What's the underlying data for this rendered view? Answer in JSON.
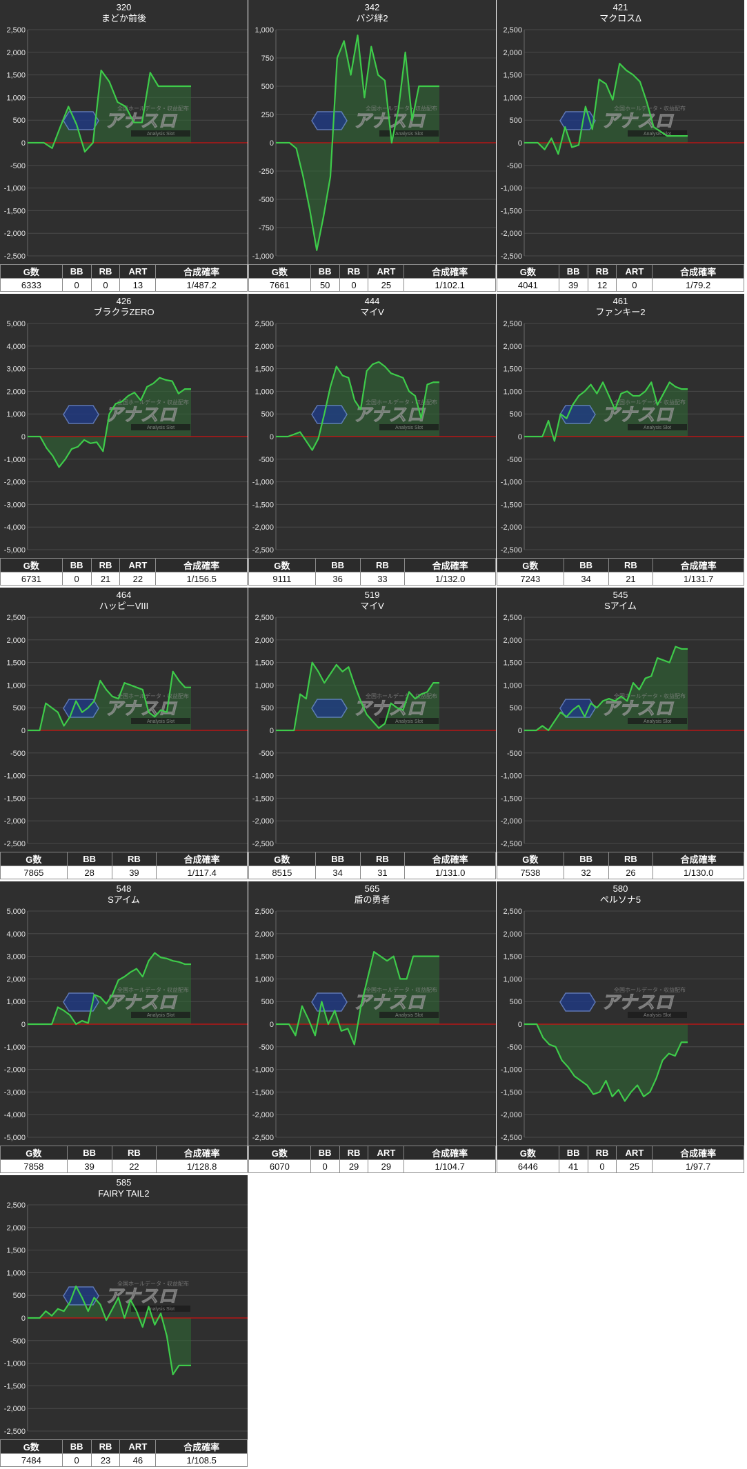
{
  "stats_labels": {
    "g": "G数",
    "bb": "BB",
    "rb": "RB",
    "art": "ART",
    "prob": "合成確率"
  },
  "watermark": {
    "text": "アナスロ",
    "sub": "Analysis Slot",
    "top": "全国ホールデータ・収益配布"
  },
  "colors": {
    "background": "#2f2f2f",
    "line": "#3ecb4a",
    "fill": "#2f6b34",
    "zero_line": "#d01010",
    "grid": "#4a4a4a"
  },
  "chart_data": [
    {
      "type": "area",
      "number": "320",
      "title": "まどか前後",
      "ylim": [
        -2500,
        2500
      ],
      "yticks": [
        2500,
        2000,
        1500,
        1000,
        500,
        0,
        -500,
        -1000,
        -1500,
        -2000,
        -2500
      ],
      "values": [
        0,
        0,
        0,
        -120,
        350,
        800,
        400,
        -200,
        0,
        1600,
        1350,
        900,
        800,
        450,
        450,
        1550,
        1250,
        1250,
        1250,
        1250,
        1250
      ],
      "stats": {
        "g": "6333",
        "bb": "0",
        "rb": "0",
        "art": "13",
        "prob": "1/487.2"
      }
    },
    {
      "type": "area",
      "number": "342",
      "title": "バジ絆2",
      "ylim": [
        -1000,
        1000
      ],
      "yticks": [
        1000,
        750,
        500,
        250,
        0,
        -250,
        -500,
        -750,
        -1000
      ],
      "values": [
        0,
        0,
        0,
        -50,
        -300,
        -600,
        -950,
        -650,
        -300,
        750,
        900,
        600,
        950,
        400,
        850,
        600,
        550,
        0,
        300,
        800,
        200,
        500,
        500,
        500,
        500
      ],
      "stats": {
        "g": "7661",
        "bb": "50",
        "rb": "0",
        "art": "25",
        "prob": "1/102.1"
      }
    },
    {
      "type": "area",
      "number": "421",
      "title": "マクロスΔ",
      "ylim": [
        -2500,
        2500
      ],
      "yticks": [
        2500,
        2000,
        1500,
        1000,
        500,
        0,
        -500,
        -1000,
        -1500,
        -2000,
        -2500
      ],
      "values": [
        0,
        0,
        0,
        -150,
        100,
        -250,
        350,
        -100,
        -50,
        800,
        300,
        1400,
        1300,
        950,
        1750,
        1600,
        1500,
        1350,
        900,
        350,
        250,
        150,
        150,
        150,
        150
      ],
      "stats": {
        "g": "4041",
        "bb": "39",
        "rb": "12",
        "art": "0",
        "prob": "1/79.2"
      }
    },
    {
      "type": "area",
      "number": "426",
      "title": "ブラクラZERO",
      "ylim": [
        -5000,
        5000
      ],
      "yticks": [
        5000,
        4000,
        3000,
        2000,
        1000,
        0,
        -1000,
        -2000,
        -3000,
        -4000,
        -5000
      ],
      "values": [
        0,
        0,
        0,
        -500,
        -850,
        -1350,
        -1000,
        -550,
        -450,
        -150,
        -300,
        -250,
        -650,
        1000,
        1450,
        1550,
        1800,
        1950,
        1600,
        2200,
        2350,
        2600,
        2500,
        2450,
        1900,
        2100,
        2100
      ],
      "stats": {
        "g": "6731",
        "bb": "0",
        "rb": "21",
        "art": "22",
        "prob": "1/156.5"
      }
    },
    {
      "type": "area",
      "number": "444",
      "title": "マイV",
      "ylim": [
        -2500,
        2500
      ],
      "yticks": [
        2500,
        2000,
        1500,
        1000,
        500,
        0,
        -500,
        -1000,
        -1500,
        -2000,
        -2500
      ],
      "values": [
        0,
        0,
        0,
        50,
        100,
        -100,
        -300,
        -50,
        500,
        1100,
        1550,
        1350,
        1300,
        800,
        600,
        1450,
        1600,
        1650,
        1550,
        1400,
        1350,
        1300,
        1000,
        900,
        400,
        1150,
        1200,
        1200
      ],
      "stats": {
        "g": "9111",
        "bb": "36",
        "rb": "33",
        "prob": "1/132.0"
      }
    },
    {
      "type": "area",
      "number": "461",
      "title": "ファンキー2",
      "ylim": [
        -2500,
        2500
      ],
      "yticks": [
        2500,
        2000,
        1500,
        1000,
        500,
        0,
        -500,
        -1000,
        -1500,
        -2000,
        -2500
      ],
      "values": [
        0,
        0,
        0,
        0,
        350,
        -100,
        500,
        400,
        700,
        900,
        1000,
        1150,
        950,
        1200,
        900,
        600,
        950,
        1000,
        900,
        900,
        1000,
        1200,
        700,
        950,
        1200,
        1100,
        1050,
        1050
      ],
      "stats": {
        "g": "7243",
        "bb": "34",
        "rb": "21",
        "prob": "1/131.7"
      }
    },
    {
      "type": "area",
      "number": "464",
      "title": "ハッピーVIII",
      "ylim": [
        -2500,
        2500
      ],
      "yticks": [
        2500,
        2000,
        1500,
        1000,
        500,
        0,
        -500,
        -1000,
        -1500,
        -2000,
        -2500
      ],
      "values": [
        0,
        0,
        0,
        600,
        500,
        400,
        100,
        300,
        650,
        400,
        500,
        650,
        1100,
        900,
        750,
        700,
        1050,
        1000,
        950,
        900,
        400,
        300,
        450,
        400,
        1300,
        1100,
        950,
        950
      ],
      "stats": {
        "g": "7865",
        "bb": "28",
        "rb": "39",
        "prob": "1/117.4"
      }
    },
    {
      "type": "area",
      "number": "519",
      "title": "マイV",
      "ylim": [
        -2500,
        2500
      ],
      "yticks": [
        2500,
        2000,
        1500,
        1000,
        500,
        0,
        -500,
        -1000,
        -1500,
        -2000,
        -2500
      ],
      "values": [
        0,
        0,
        0,
        0,
        800,
        700,
        1500,
        1300,
        1050,
        1250,
        1450,
        1300,
        1400,
        1000,
        650,
        350,
        200,
        50,
        150,
        600,
        500,
        450,
        850,
        700,
        800,
        850,
        1050,
        1050
      ],
      "stats": {
        "g": "8515",
        "bb": "34",
        "rb": "31",
        "prob": "1/131.0"
      }
    },
    {
      "type": "area",
      "number": "545",
      "title": "Sアイム",
      "ylim": [
        -2500,
        2500
      ],
      "yticks": [
        2500,
        2000,
        1500,
        1000,
        500,
        0,
        -500,
        -1000,
        -1500,
        -2000,
        -2500
      ],
      "values": [
        0,
        0,
        0,
        100,
        0,
        200,
        400,
        300,
        450,
        550,
        300,
        600,
        500,
        650,
        700,
        650,
        750,
        650,
        1050,
        900,
        1150,
        1200,
        1600,
        1550,
        1500,
        1850,
        1800,
        1800
      ],
      "stats": {
        "g": "7538",
        "bb": "32",
        "rb": "26",
        "prob": "1/130.0"
      }
    },
    {
      "type": "area",
      "number": "548",
      "title": "Sアイム",
      "ylim": [
        -5000,
        5000
      ],
      "yticks": [
        5000,
        4000,
        3000,
        2000,
        1000,
        0,
        -1000,
        -2000,
        -3000,
        -4000,
        -5000
      ],
      "values": [
        0,
        0,
        0,
        0,
        0,
        750,
        600,
        400,
        0,
        150,
        50,
        1300,
        1200,
        900,
        1300,
        1950,
        2100,
        2300,
        2450,
        2100,
        2800,
        3150,
        2950,
        2900,
        2800,
        2750,
        2650,
        2650
      ],
      "stats": {
        "g": "7858",
        "bb": "39",
        "rb": "22",
        "prob": "1/128.8"
      }
    },
    {
      "type": "area",
      "number": "565",
      "title": "盾の勇者",
      "ylim": [
        -2500,
        2500
      ],
      "yticks": [
        2500,
        2000,
        1500,
        1000,
        500,
        0,
        -500,
        -1000,
        -1500,
        -2000,
        -2500
      ],
      "values": [
        0,
        0,
        0,
        -250,
        400,
        100,
        -250,
        500,
        0,
        300,
        -150,
        -100,
        -450,
        400,
        1000,
        1600,
        1500,
        1400,
        1500,
        1000,
        1000,
        1500,
        1500,
        1500,
        1500,
        1500
      ],
      "stats": {
        "g": "6070",
        "bb": "0",
        "rb": "29",
        "art": "29",
        "prob": "1/104.7"
      }
    },
    {
      "type": "area",
      "number": "580",
      "title": "ペルソナ5",
      "ylim": [
        -2500,
        2500
      ],
      "yticks": [
        2500,
        2000,
        1500,
        1000,
        500,
        0,
        -500,
        -1000,
        -1500,
        -2000,
        -2500
      ],
      "values": [
        0,
        0,
        0,
        -300,
        -450,
        -500,
        -800,
        -950,
        -1150,
        -1250,
        -1350,
        -1550,
        -1500,
        -1250,
        -1600,
        -1450,
        -1700,
        -1500,
        -1350,
        -1600,
        -1500,
        -1200,
        -800,
        -650,
        -700,
        -400,
        -400
      ],
      "stats": {
        "g": "6446",
        "bb": "41",
        "rb": "0",
        "art": "25",
        "prob": "1/97.7"
      }
    },
    {
      "type": "area",
      "number": "585",
      "title": "FAIRY TAIL2",
      "ylim": [
        -2500,
        2500
      ],
      "yticks": [
        2500,
        2000,
        1500,
        1000,
        500,
        0,
        -500,
        -1000,
        -1500,
        -2000,
        -2500
      ],
      "values": [
        0,
        0,
        0,
        150,
        50,
        200,
        150,
        350,
        700,
        450,
        150,
        450,
        300,
        -50,
        200,
        450,
        0,
        400,
        150,
        -200,
        250,
        -150,
        100,
        -400,
        -1250,
        -1050,
        -1050,
        -1050
      ],
      "stats": {
        "g": "7484",
        "bb": "0",
        "rb": "23",
        "art": "46",
        "prob": "1/108.5"
      }
    }
  ]
}
